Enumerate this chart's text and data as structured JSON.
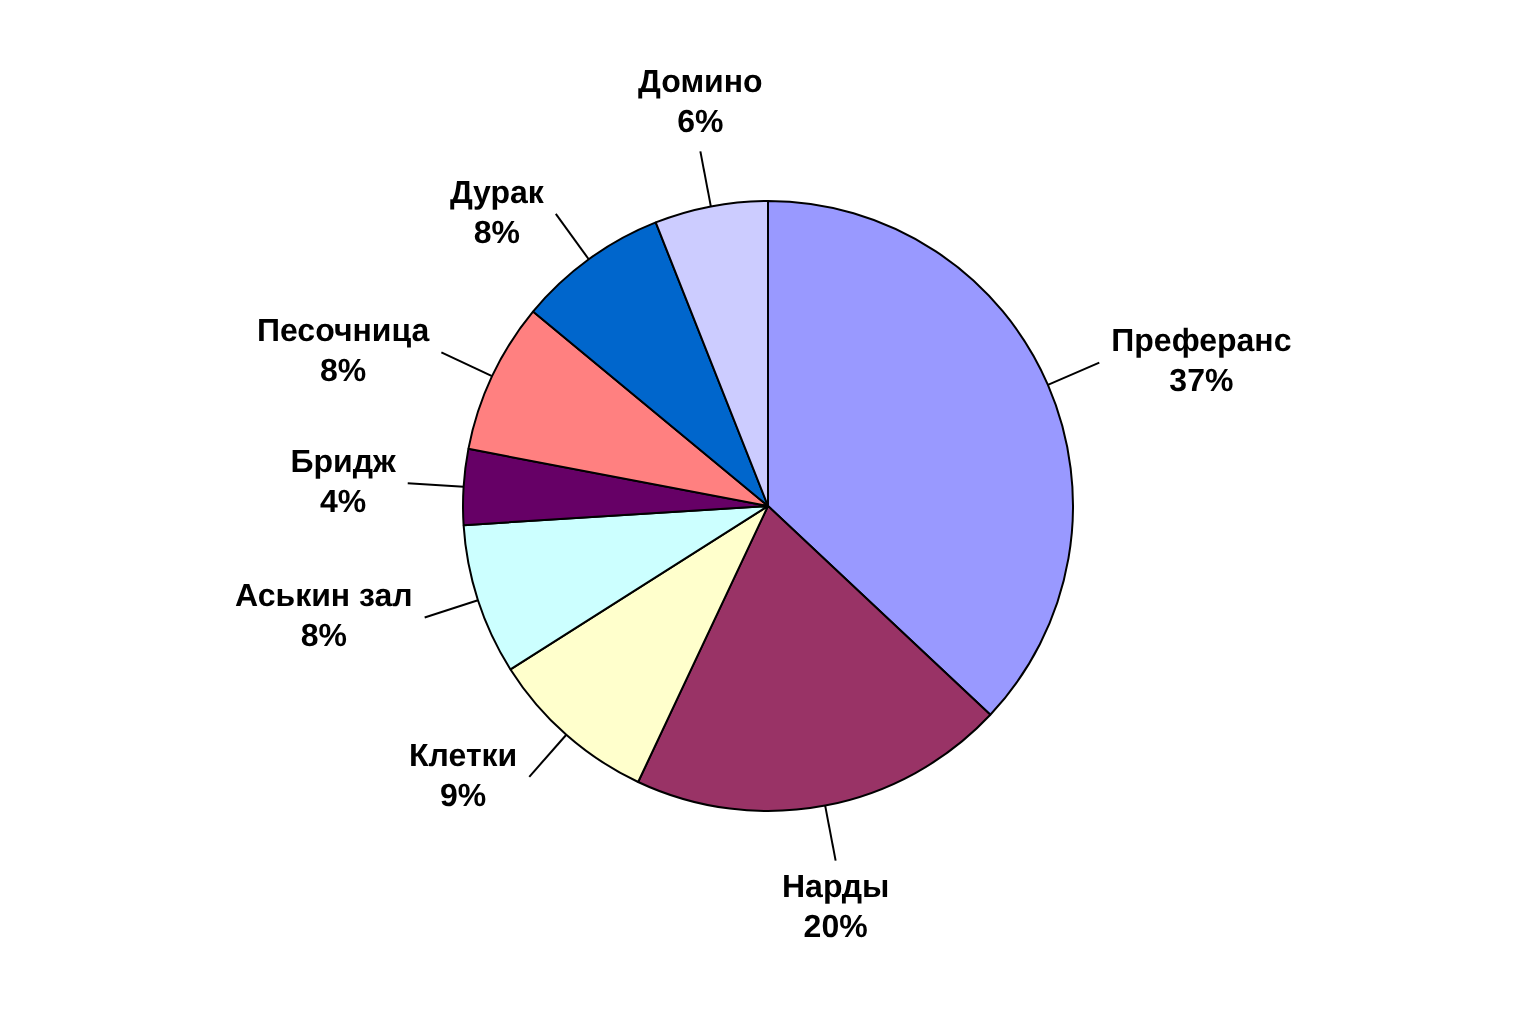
{
  "chart_data": {
    "type": "pie",
    "categories": [
      "Преферанс",
      "Нарды",
      "Клетки",
      "Аськин зал",
      "Бридж",
      "Песочница",
      "Дурак",
      "Домино"
    ],
    "values": [
      37,
      20,
      9,
      8,
      4,
      8,
      8,
      6
    ],
    "value_labels": [
      "37%",
      "20%",
      "9%",
      "8%",
      "4%",
      "8%",
      "8%",
      "6%"
    ],
    "colors": [
      "#9999ff",
      "#993366",
      "#ffffcc",
      "#ccffff",
      "#660066",
      "#ff8080",
      "#0066cc",
      "#ccccff"
    ]
  }
}
